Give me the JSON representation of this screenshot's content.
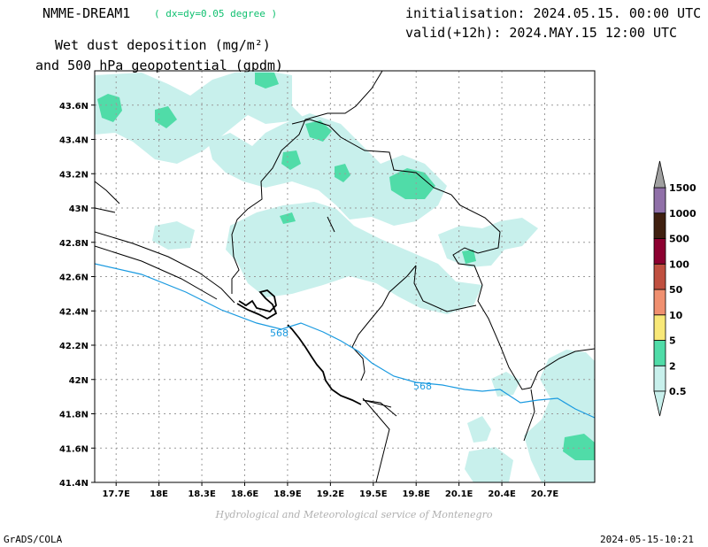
{
  "header": {
    "model": "NMME-DREAM1",
    "resolution": "( dx=dy=0.05 degree )",
    "title_line1": "Wet dust deposition (mg/m²)",
    "title_line2": "and 500 hPa geopotential (gpdm)",
    "initialisation": "initialisation: 2024.05.15. 00:00 UTC",
    "valid": "valid(+12h): 2024.MAY.15 12:00 UTC"
  },
  "footer": {
    "credit": "Hydrological and Meteorological service of Montenegro",
    "software": "GrADS/COLA",
    "timestamp": "2024-05-15-10:21"
  },
  "map": {
    "lon_range": [
      17.55,
      21.05
    ],
    "lat_range": [
      41.4,
      43.8
    ],
    "lat_ticks": [
      "41.4N",
      "41.6N",
      "41.8N",
      "42N",
      "42.2N",
      "42.4N",
      "42.6N",
      "42.8N",
      "43N",
      "43.2N",
      "43.4N",
      "43.6N"
    ],
    "lat_values": [
      41.4,
      41.6,
      41.8,
      42.0,
      42.2,
      42.4,
      42.6,
      42.8,
      43.0,
      43.2,
      43.4,
      43.6
    ],
    "lon_ticks": [
      "17.7E",
      "18E",
      "18.3E",
      "18.6E",
      "18.9E",
      "19.2E",
      "19.5E",
      "19.8E",
      "20.1E",
      "20.4E",
      "20.7E"
    ],
    "lon_values": [
      17.7,
      18.0,
      18.3,
      18.6,
      18.9,
      19.2,
      19.5,
      19.8,
      20.1,
      20.4,
      20.7
    ],
    "grid_lines": true,
    "contour_labels": [
      "568",
      "568"
    ]
  },
  "colorbar": {
    "labels": [
      "0.5",
      "2",
      "5",
      "10",
      "50",
      "100",
      "500",
      "1000",
      "1500"
    ],
    "colors": [
      "#c8f0ec",
      "#50dca8",
      "#f8e878",
      "#f09070",
      "#c05040",
      "#8c0030",
      "#402010",
      "#9070a8",
      "#a0a0a0"
    ]
  }
}
